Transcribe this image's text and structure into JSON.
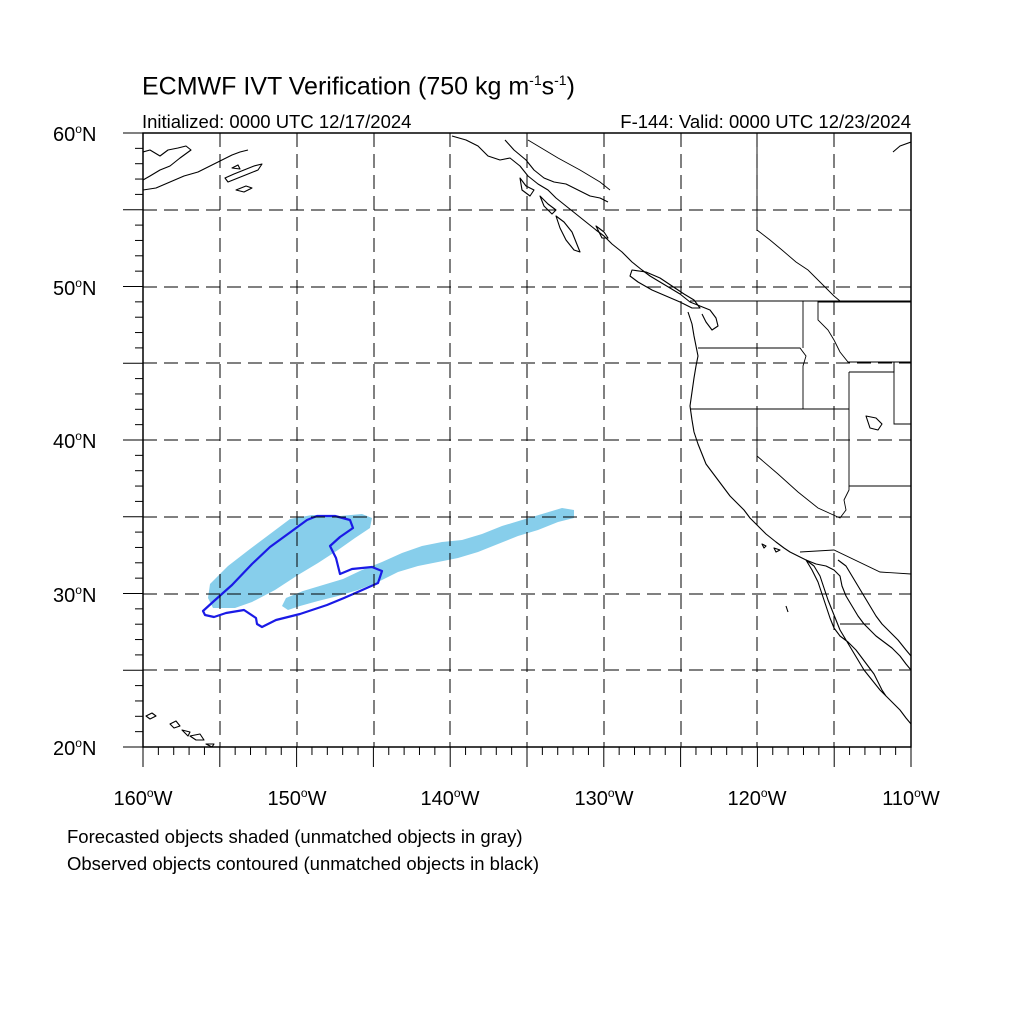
{
  "title_main": "ECMWF IVT Verification (750 kg m",
  "title_exp1": "-1",
  "title_mid": "s",
  "title_exp2": "-1",
  "title_end": ")",
  "initialized": "Initialized: 0000 UTC 12/17/2024",
  "valid": "F-144: Valid: 0000 UTC 12/23/2024",
  "lat_labels": [
    {
      "value": "60",
      "hemi": "N"
    },
    {
      "value": "50",
      "hemi": "N"
    },
    {
      "value": "40",
      "hemi": "N"
    },
    {
      "value": "30",
      "hemi": "N"
    },
    {
      "value": "20",
      "hemi": "N"
    }
  ],
  "lon_labels": [
    {
      "value": "160",
      "hemi": "W"
    },
    {
      "value": "150",
      "hemi": "W"
    },
    {
      "value": "140",
      "hemi": "W"
    },
    {
      "value": "130",
      "hemi": "W"
    },
    {
      "value": "120",
      "hemi": "W"
    },
    {
      "value": "110",
      "hemi": "W"
    }
  ],
  "degree_symbol": "o",
  "note_forecast": "Forecasted objects shaded (unmatched objects in gray)",
  "note_observed": "Observed objects contoured (unmatched objects in black)",
  "colors": {
    "forecast_fill": "#87ceeb",
    "observed_contour": "#1a1ae6",
    "coast": "#000000",
    "grid": "#000000"
  },
  "map_extent": {
    "lon_min": -160,
    "lon_max": -110,
    "lat_min": 20,
    "lat_max": 60
  }
}
